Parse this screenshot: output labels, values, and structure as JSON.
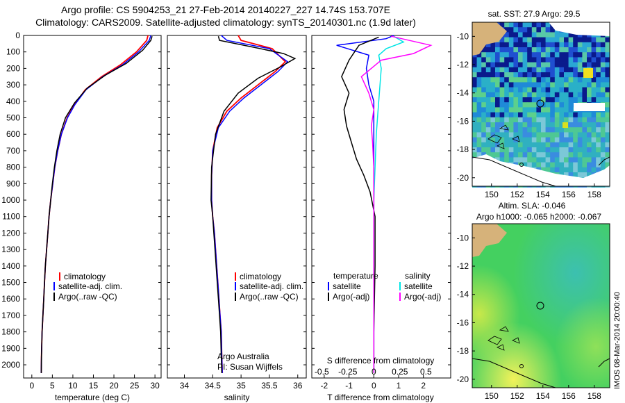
{
  "titles": {
    "line1": "Argo profile: CS 5904253_21 27-Feb-2014 20140227_227 14.74S 153.707E",
    "line2": "Climatology: CARS2009. Satellite-adjusted climatology: synTS_20140301.nc (1.9d later)"
  },
  "panels": {
    "temperature": {
      "xlabel": "temperature (deg C)",
      "xticks": [
        0,
        5,
        10,
        15,
        20,
        25,
        30
      ],
      "xlim": [
        -2,
        31.5
      ],
      "legend": [
        "climatology",
        "satellite-adj. clim.",
        "Argo(..raw -QC)"
      ]
    },
    "salinity": {
      "xlabel": "salinity",
      "xticks": [
        "34",
        "34.5",
        "35",
        "35.5",
        "36"
      ],
      "xlim": [
        33.7,
        36.15
      ],
      "legend": [
        "climatology",
        "satellite-adj. clim.",
        "Argo(..raw -QC)"
      ],
      "note1": "Argo Australia",
      "note2": "PI: Susan Wijffels"
    },
    "difference": {
      "xlabel_bottom": "T difference from climatology",
      "xlabel_top": "S difference from climatology",
      "xticks_bottom": [
        "-2",
        "-1",
        "0",
        "1",
        "2"
      ],
      "xticks_top": [
        "-0.5",
        "-0.25",
        "0",
        "0.25",
        "0.5"
      ],
      "legend_t_title": "temperature",
      "legend_s_title": "salinity",
      "legend_items": [
        "satellite",
        "Argo(-adj)",
        "satellite",
        "Argo(-adj)"
      ]
    },
    "depth_ticks": [
      "0",
      "100",
      "200",
      "300",
      "400",
      "500",
      "600",
      "700",
      "800",
      "900",
      "1000",
      "1100",
      "1200",
      "1300",
      "1400",
      "1500",
      "1600",
      "1700",
      "1800",
      "1900",
      "2000"
    ]
  },
  "maps": {
    "sst_title": "sat. SST: 27.9 Argo: 29.5",
    "sla_title1": "Altim. SLA: -0.046",
    "sla_title2": "Argo h1000: -0.065 h2000: -0.067",
    "lon_ticks": [
      "150",
      "152",
      "154",
      "156",
      "158"
    ],
    "lat_ticks": [
      "-10",
      "-12",
      "-14",
      "-16",
      "-18",
      "-20"
    ],
    "float_position": {
      "lon": 153.707,
      "lat": -14.74
    }
  },
  "stamp": "IMOS 08-Mar-2014 20:00:40",
  "colors": {
    "climatology": "#ff0000",
    "satellite_adj": "#0000ff",
    "argo": "#000000",
    "salinity_satellite": "#00e5e5",
    "salinity_argo": "#ff00ff"
  },
  "chart_data": [
    {
      "type": "line",
      "title": "",
      "xlabel": "temperature (deg C)",
      "ylabel": "",
      "xlim": [
        -2,
        31.5
      ],
      "ylim": [
        2080,
        0
      ],
      "y_reversed": true,
      "series": [
        {
          "name": "climatology",
          "x": [
            28.3,
            28.0,
            25.5,
            21.5,
            17.0,
            13.0,
            10.4,
            8.6,
            7.2,
            6.3,
            5.6,
            5.1,
            4.6,
            4.2,
            3.9,
            3.6,
            3.3,
            3.1,
            2.9,
            2.7,
            2.5,
            2.35,
            2.3
          ],
          "y": [
            0,
            30,
            100,
            180,
            250,
            330,
            420,
            500,
            600,
            700,
            800,
            900,
            1000,
            1100,
            1200,
            1300,
            1400,
            1500,
            1600,
            1700,
            1800,
            1950,
            2050
          ]
        },
        {
          "name": "satellite-adj. clim.",
          "x": [
            29.0,
            28.6,
            26.0,
            22.0,
            17.3,
            13.2,
            10.5,
            8.7,
            7.2,
            6.3,
            5.6,
            5.1,
            4.6,
            4.2,
            3.9,
            3.6,
            3.3,
            3.1,
            2.9,
            2.7,
            2.5,
            2.35,
            2.3
          ],
          "y": [
            0,
            30,
            100,
            180,
            250,
            330,
            420,
            500,
            600,
            700,
            800,
            900,
            1000,
            1100,
            1200,
            1300,
            1400,
            1500,
            1600,
            1700,
            1800,
            1950,
            2050
          ]
        },
        {
          "name": "Argo(..raw -QC)",
          "x": [
            29.3,
            29.0,
            27.0,
            23.0,
            18.0,
            13.5,
            10.4,
            8.2,
            6.9,
            6.1,
            5.5,
            5.0,
            4.6,
            4.2,
            3.9,
            3.6,
            3.3,
            3.1,
            2.9,
            2.7,
            2.5,
            2.35,
            2.3
          ],
          "y": [
            5,
            30,
            90,
            170,
            240,
            320,
            410,
            500,
            600,
            700,
            800,
            900,
            1000,
            1100,
            1200,
            1300,
            1400,
            1500,
            1600,
            1700,
            1800,
            1950,
            2050
          ]
        }
      ]
    },
    {
      "type": "line",
      "title": "",
      "xlabel": "salinity",
      "ylabel": "",
      "xlim": [
        33.7,
        36.15
      ],
      "ylim": [
        2080,
        0
      ],
      "y_reversed": true,
      "series": [
        {
          "name": "climatology",
          "x": [
            34.95,
            35.0,
            35.55,
            35.78,
            35.6,
            35.3,
            35.0,
            34.75,
            34.58,
            34.5,
            34.48,
            34.48,
            34.5,
            34.53,
            34.55,
            34.57,
            34.59,
            34.61,
            34.63,
            34.65,
            34.66,
            34.67
          ],
          "y": [
            0,
            30,
            80,
            160,
            220,
            300,
            380,
            460,
            560,
            700,
            850,
            1000,
            1100,
            1200,
            1300,
            1400,
            1500,
            1600,
            1700,
            1800,
            1950,
            2050
          ]
        },
        {
          "name": "satellite-adj. clim.",
          "x": [
            34.65,
            34.75,
            35.5,
            35.82,
            35.65,
            35.35,
            35.05,
            34.8,
            34.6,
            34.5,
            34.48,
            34.48,
            34.5,
            34.53,
            34.55,
            34.57,
            34.59,
            34.61,
            34.63,
            34.65,
            34.66,
            34.67
          ],
          "y": [
            0,
            30,
            80,
            160,
            220,
            300,
            380,
            460,
            560,
            700,
            850,
            1000,
            1100,
            1200,
            1300,
            1400,
            1500,
            1600,
            1700,
            1800,
            1950,
            2050
          ]
        },
        {
          "name": "Argo(..raw -QC)",
          "x": [
            34.6,
            34.62,
            35.2,
            35.75,
            35.95,
            35.7,
            35.3,
            34.95,
            34.7,
            34.55,
            34.48,
            34.47,
            34.5,
            34.52,
            34.54,
            34.56,
            34.58,
            34.6,
            34.62,
            34.64,
            34.65,
            34.66
          ],
          "y": [
            5,
            30,
            70,
            110,
            140,
            190,
            260,
            350,
            460,
            600,
            800,
            1000,
            1100,
            1200,
            1300,
            1400,
            1500,
            1600,
            1700,
            1800,
            1950,
            2050
          ]
        }
      ]
    },
    {
      "type": "line",
      "title": "",
      "xlabel": "T difference from climatology",
      "ylabel": "",
      "xlim": [
        -2.5,
        3.1
      ],
      "ylim": [
        2080,
        0
      ],
      "y_reversed": true,
      "series": [
        {
          "name": "satellite",
          "x": [
            0.8,
            0.5,
            -1.5,
            -0.2,
            -0.3,
            -0.2,
            0.0,
            0.0,
            0.0,
            0.0,
            0.0,
            0.0,
            0.0
          ],
          "y": [
            0,
            20,
            60,
            120,
            200,
            300,
            400,
            600,
            800,
            1000,
            1400,
            1800,
            2050
          ]
        },
        {
          "name": "Argo(-adj)",
          "x": [
            0.2,
            -0.6,
            -1.0,
            -1.3,
            -1.0,
            -1.2,
            -1.1,
            -0.9,
            -0.7,
            -0.4,
            -0.15,
            0.05,
            0.05,
            0.0,
            0.0
          ],
          "y": [
            10,
            60,
            150,
            250,
            350,
            450,
            550,
            650,
            750,
            850,
            950,
            1100,
            1400,
            1800,
            2050
          ]
        },
        {
          "name": "satellite",
          "x": [
            0.8,
            1.2,
            0.5,
            0.2,
            0.3,
            0.25,
            0.2,
            0.15,
            0.1,
            0.05,
            0.0,
            0.0,
            0.0
          ],
          "y": [
            5,
            40,
            80,
            120,
            200,
            300,
            400,
            500,
            600,
            800,
            1000,
            1400,
            2050
          ]
        },
        {
          "name": "Argo(-adj)",
          "x": [
            0.7,
            2.3,
            1.6,
            0.3,
            -0.5,
            -0.2,
            0.0,
            -0.1,
            -0.05,
            0.0,
            0.0,
            0.0,
            0.0
          ],
          "y": [
            5,
            60,
            110,
            150,
            250,
            350,
            450,
            550,
            650,
            800,
            1000,
            1400,
            2050
          ]
        }
      ]
    }
  ]
}
